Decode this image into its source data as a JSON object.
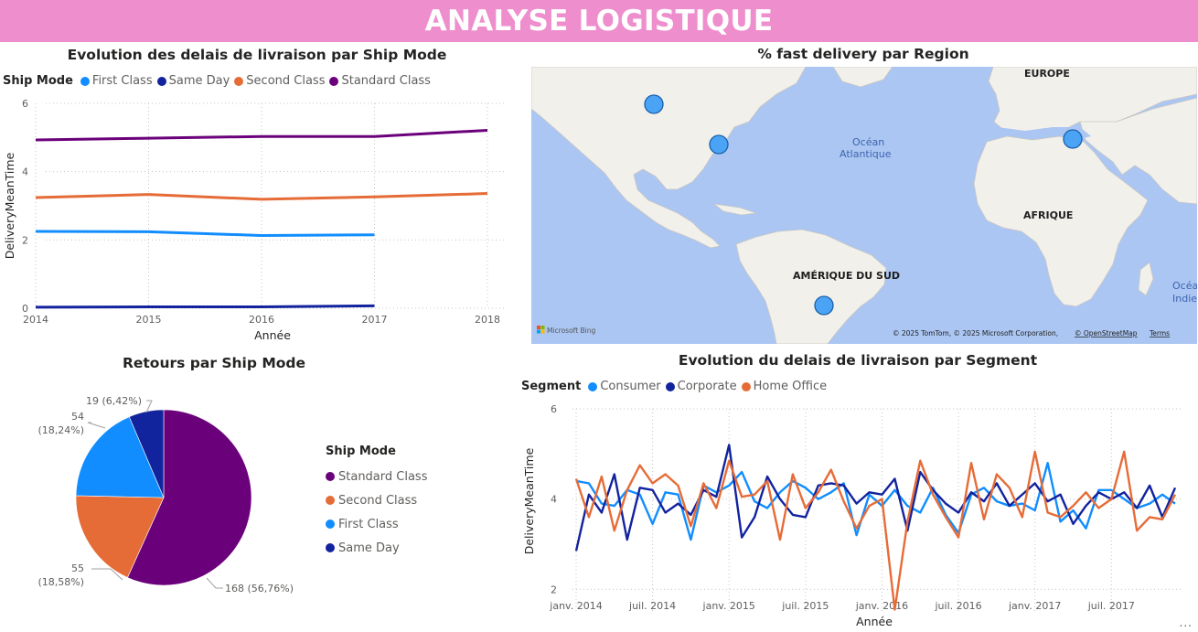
{
  "banner": {
    "title": "ANALYSE LOGISTIQUE"
  },
  "colors": {
    "banner_bg": "#ee8ecd",
    "first_class": "#118dff",
    "same_day": "#12239e",
    "second_class": "#e66c37",
    "standard_class": "#6b007b",
    "map_water": "#abc6f2",
    "map_land": "#f2f0eb",
    "marker": "#4aa3f5"
  },
  "delay_by_shipmode": {
    "title": "Evolution des delais de livraison par Ship Mode",
    "legend_title": "Ship Mode",
    "legend": [
      "First Class",
      "Same Day",
      "Second Class",
      "Standard Class"
    ]
  },
  "fast_delivery_map": {
    "title": "% fast delivery par Region",
    "labels": {
      "europe": "EUROPE",
      "afrique": "AFRIQUE",
      "amerique_sud": "AMÉRIQUE DU SUD",
      "ocean1": "Océan",
      "ocean2": "Atlantique",
      "ocean_right1": "Océa",
      "ocean_right2": "Indie"
    },
    "logo": "Microsoft Bing",
    "attribution": "© 2025 TomTom, © 2025 Microsoft Corporation,",
    "osm_link": "© OpenStreetMap",
    "terms_link": "Terms"
  },
  "returns_by_shipmode": {
    "title": "Retours par Ship Mode",
    "legend_title": "Ship Mode",
    "legend": [
      "Standard Class",
      "Second Class",
      "First Class",
      "Same Day"
    ],
    "slice_labels": [
      "168 (56,76%)",
      "55",
      "(18,58%)",
      "54",
      "(18,24%)",
      "19 (6,42%)"
    ]
  },
  "delay_by_segment": {
    "title": "Evolution du delais de livraison par Segment",
    "legend_title": "Segment",
    "legend": [
      "Consumer",
      "Corporate",
      "Home Office"
    ],
    "more_options": "..."
  },
  "chart_data": [
    {
      "type": "line",
      "title": "Evolution des delais de livraison par Ship Mode",
      "xlabel": "Année",
      "ylabel": "DeliveryMeanTime",
      "x": [
        "2014",
        "2015",
        "2016",
        "2017",
        "2018"
      ],
      "ylim": [
        0,
        6
      ],
      "yticks": [
        "0",
        "2",
        "4",
        "6"
      ],
      "grid": true,
      "legend_position": "top-left",
      "series": [
        {
          "name": "First Class",
          "color": "#118dff",
          "values": [
            2.25,
            2.24,
            2.13,
            2.15,
            null
          ]
        },
        {
          "name": "Same Day",
          "color": "#12239e",
          "values": [
            0.03,
            0.04,
            0.04,
            0.07,
            null
          ]
        },
        {
          "name": "Second Class",
          "color": "#e66c37",
          "values": [
            3.24,
            3.33,
            3.19,
            3.26,
            3.36
          ]
        },
        {
          "name": "Standard Class",
          "color": "#6b007b",
          "values": [
            4.93,
            4.98,
            5.03,
            5.03,
            5.21
          ]
        }
      ]
    },
    {
      "type": "pie",
      "title": "Retours par Ship Mode",
      "legend_position": "right",
      "categories": [
        "Standard Class",
        "Second Class",
        "First Class",
        "Same Day"
      ],
      "values": [
        168,
        55,
        54,
        19
      ],
      "percent": [
        56.76,
        18.58,
        18.24,
        6.42
      ],
      "colors": [
        "#6b007b",
        "#e66c37",
        "#118dff",
        "#12239e"
      ]
    },
    {
      "type": "line",
      "title": "Evolution du delais de livraison par Segment",
      "xlabel": "Année",
      "ylabel": "DeliveryMeanTime",
      "xticks": [
        "janv. 2014",
        "juil. 2014",
        "janv. 2015",
        "juil. 2015",
        "janv. 2016",
        "juil. 2016",
        "janv. 2017",
        "juil. 2017"
      ],
      "ylim": [
        1.5,
        6
      ],
      "yticks": [
        "2",
        "4",
        "6"
      ],
      "grid": true,
      "legend_position": "top-left",
      "months": 48,
      "series": [
        {
          "name": "Consumer",
          "color": "#118dff",
          "values": [
            4.4,
            4.35,
            3.9,
            3.85,
            4.2,
            4.1,
            3.45,
            4.15,
            4.1,
            3.1,
            4.3,
            4.15,
            4.3,
            4.6,
            3.95,
            3.8,
            4.15,
            4.4,
            4.25,
            4.0,
            4.15,
            4.35,
            3.2,
            4.1,
            3.85,
            4.2,
            3.85,
            3.7,
            4.25,
            3.65,
            3.25,
            4.1,
            4.25,
            3.95,
            3.85,
            3.9,
            3.75,
            4.8,
            3.5,
            3.75,
            3.35,
            4.2,
            4.2,
            4.0,
            3.8,
            3.9,
            4.1,
            3.9
          ]
        },
        {
          "name": "Corporate",
          "color": "#12239e",
          "values": [
            2.85,
            4.1,
            3.7,
            4.55,
            3.1,
            4.25,
            4.2,
            3.7,
            3.9,
            3.65,
            4.2,
            4.05,
            5.2,
            3.15,
            3.6,
            4.5,
            4.0,
            3.65,
            3.6,
            4.3,
            4.35,
            4.3,
            3.9,
            4.15,
            4.1,
            4.45,
            3.3,
            4.6,
            4.2,
            3.9,
            3.7,
            4.15,
            3.95,
            4.35,
            3.85,
            4.1,
            4.35,
            3.95,
            4.1,
            3.45,
            3.85,
            4.15,
            4.0,
            4.15,
            3.8,
            4.3,
            3.6,
            4.25
          ]
        },
        {
          "name": "Home Office",
          "color": "#e66c37",
          "values": [
            4.45,
            3.6,
            4.5,
            3.3,
            4.2,
            4.75,
            4.35,
            4.55,
            4.3,
            3.4,
            4.35,
            3.8,
            4.85,
            4.05,
            4.1,
            4.4,
            3.1,
            4.55,
            3.8,
            4.15,
            4.65,
            3.95,
            3.35,
            3.85,
            4.0,
            1.55,
            3.5,
            4.85,
            4.1,
            3.6,
            3.15,
            4.8,
            3.55,
            4.55,
            4.25,
            3.6,
            5.05,
            3.7,
            3.6,
            3.85,
            4.15,
            3.8,
            4.0,
            5.05,
            3.3,
            3.6,
            3.55,
            4.1
          ]
        }
      ]
    }
  ]
}
